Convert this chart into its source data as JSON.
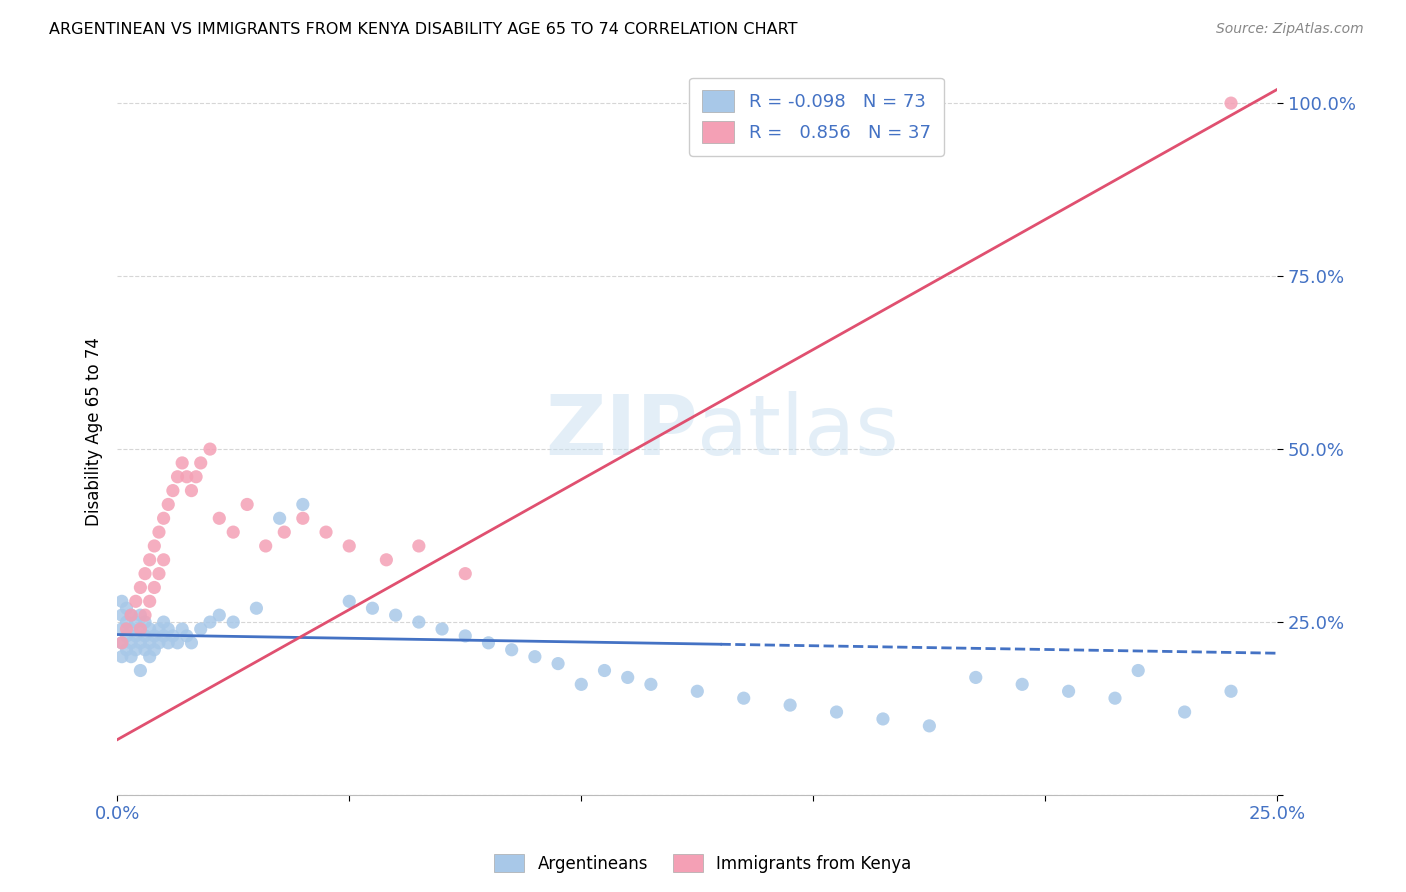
{
  "title": "ARGENTINEAN VS IMMIGRANTS FROM KENYA DISABILITY AGE 65 TO 74 CORRELATION CHART",
  "source": "Source: ZipAtlas.com",
  "ylabel": "Disability Age 65 to 74",
  "xmin": 0.0,
  "xmax": 0.25,
  "ymin": 0.0,
  "ymax": 1.05,
  "legend_r_blue": "-0.098",
  "legend_n_blue": "73",
  "legend_r_pink": "0.856",
  "legend_n_pink": "37",
  "blue_color": "#a8c8e8",
  "pink_color": "#f4a0b5",
  "line_blue_color": "#4472c4",
  "line_pink_color": "#e05070",
  "tick_label_color": "#4472c4",
  "watermark_color": "#c8dff0",
  "background_color": "#ffffff",
  "grid_color": "#cccccc",
  "blue_line_x0": 0.0,
  "blue_line_x1": 0.25,
  "blue_line_y0": 0.232,
  "blue_line_y1": 0.205,
  "pink_line_x0": 0.0,
  "pink_line_x1": 0.25,
  "pink_line_y0": 0.08,
  "pink_line_y1": 1.02,
  "blue_x": [
    0.001,
    0.001,
    0.001,
    0.001,
    0.001,
    0.002,
    0.002,
    0.002,
    0.002,
    0.003,
    0.003,
    0.003,
    0.003,
    0.004,
    0.004,
    0.004,
    0.005,
    0.005,
    0.005,
    0.005,
    0.006,
    0.006,
    0.006,
    0.007,
    0.007,
    0.007,
    0.008,
    0.008,
    0.009,
    0.009,
    0.01,
    0.01,
    0.011,
    0.011,
    0.012,
    0.013,
    0.014,
    0.015,
    0.016,
    0.018,
    0.02,
    0.022,
    0.025,
    0.03,
    0.035,
    0.04,
    0.05,
    0.055,
    0.06,
    0.065,
    0.07,
    0.075,
    0.08,
    0.085,
    0.09,
    0.095,
    0.1,
    0.105,
    0.11,
    0.115,
    0.125,
    0.135,
    0.145,
    0.155,
    0.165,
    0.175,
    0.185,
    0.195,
    0.205,
    0.215,
    0.22,
    0.23,
    0.24
  ],
  "blue_y": [
    0.22,
    0.24,
    0.26,
    0.28,
    0.2,
    0.23,
    0.25,
    0.27,
    0.21,
    0.22,
    0.24,
    0.26,
    0.2,
    0.23,
    0.25,
    0.21,
    0.22,
    0.24,
    0.26,
    0.18,
    0.23,
    0.25,
    0.21,
    0.22,
    0.24,
    0.2,
    0.23,
    0.21,
    0.24,
    0.22,
    0.23,
    0.25,
    0.22,
    0.24,
    0.23,
    0.22,
    0.24,
    0.23,
    0.22,
    0.24,
    0.25,
    0.26,
    0.25,
    0.27,
    0.4,
    0.42,
    0.28,
    0.27,
    0.26,
    0.25,
    0.24,
    0.23,
    0.22,
    0.21,
    0.2,
    0.19,
    0.16,
    0.18,
    0.17,
    0.16,
    0.15,
    0.14,
    0.13,
    0.12,
    0.11,
    0.1,
    0.17,
    0.16,
    0.15,
    0.14,
    0.18,
    0.12,
    0.15
  ],
  "pink_x": [
    0.001,
    0.002,
    0.003,
    0.004,
    0.005,
    0.005,
    0.006,
    0.006,
    0.007,
    0.007,
    0.008,
    0.008,
    0.009,
    0.009,
    0.01,
    0.01,
    0.011,
    0.012,
    0.013,
    0.014,
    0.015,
    0.016,
    0.017,
    0.018,
    0.02,
    0.022,
    0.025,
    0.028,
    0.032,
    0.036,
    0.04,
    0.045,
    0.05,
    0.058,
    0.065,
    0.075,
    0.24
  ],
  "pink_y": [
    0.22,
    0.24,
    0.26,
    0.28,
    0.3,
    0.24,
    0.32,
    0.26,
    0.34,
    0.28,
    0.36,
    0.3,
    0.38,
    0.32,
    0.4,
    0.34,
    0.42,
    0.44,
    0.46,
    0.48,
    0.46,
    0.44,
    0.46,
    0.48,
    0.5,
    0.4,
    0.38,
    0.42,
    0.36,
    0.38,
    0.4,
    0.38,
    0.36,
    0.34,
    0.36,
    0.32,
    1.0
  ]
}
